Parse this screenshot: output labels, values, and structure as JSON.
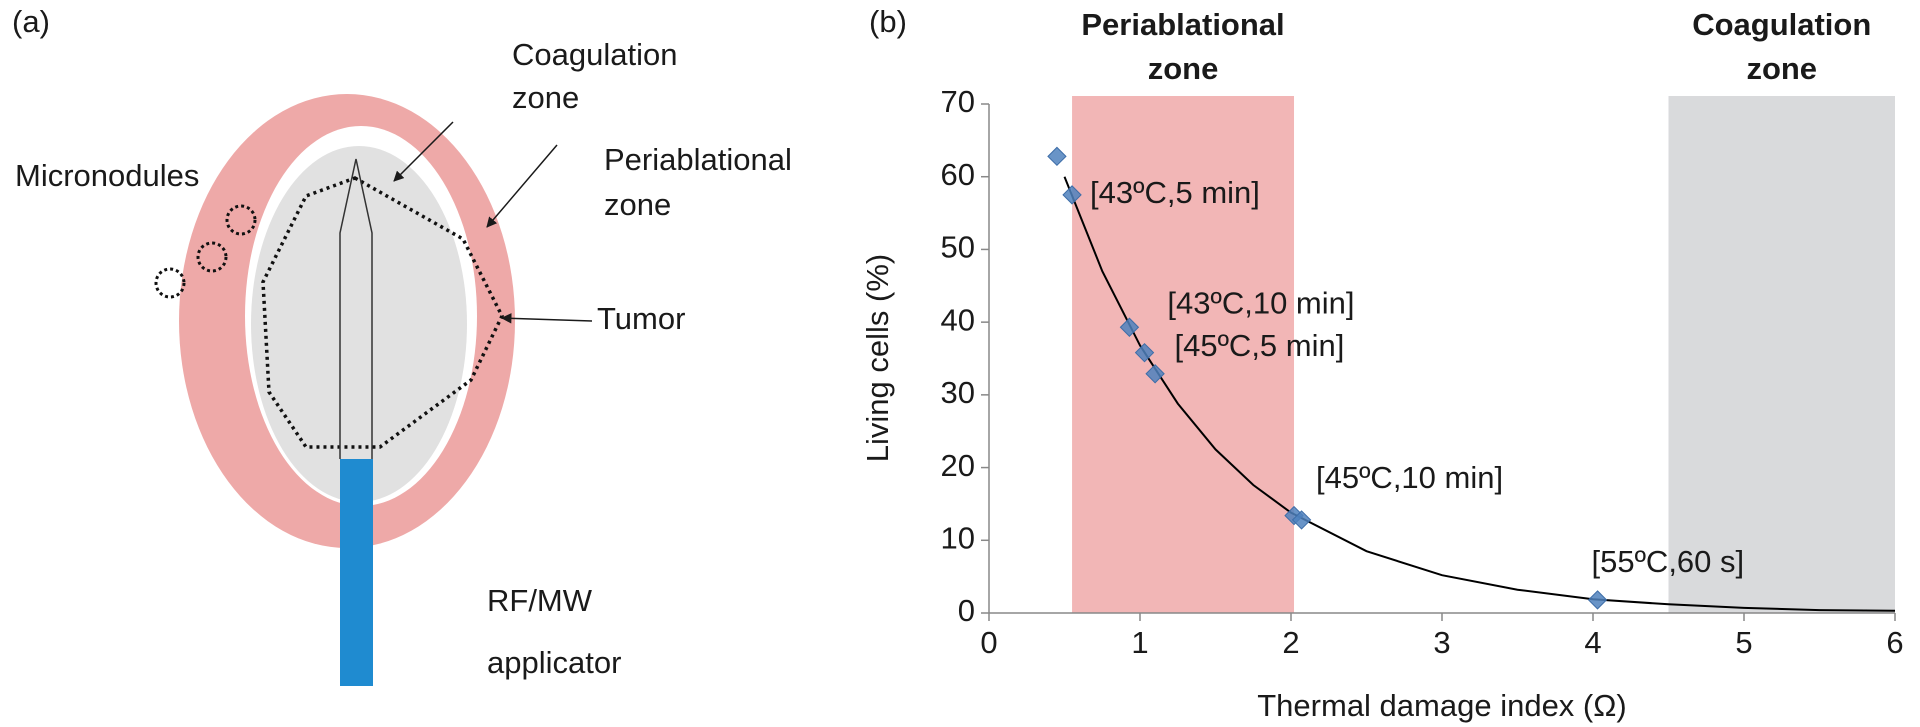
{
  "panel_a": {
    "label": "(a)",
    "coagulation_zone": [
      "Coagulation",
      "zone"
    ],
    "micronodules": "Micronodules",
    "periablational_zone": [
      "Periablational",
      "zone"
    ],
    "tumor": "Tumor",
    "applicator": [
      "RF/MW",
      "applicator"
    ]
  },
  "chart_data": {
    "type": "scatter",
    "panel_label": "(b)",
    "x_label": "Thermal damage index (Ω)",
    "y_label": "Living cells (%)",
    "xlim": [
      0,
      6
    ],
    "ylim": [
      0,
      70
    ],
    "xticks": [
      0,
      1,
      2,
      3,
      4,
      5,
      6
    ],
    "yticks": [
      0,
      10,
      20,
      30,
      40,
      50,
      60,
      70
    ],
    "zones": [
      {
        "label": [
          "Periablational",
          "zone"
        ],
        "x": [
          0.55,
          2.02
        ],
        "color": "#f2b6b6"
      },
      {
        "label": [
          "Coagulation",
          "zone"
        ],
        "x": [
          4.5,
          6
        ],
        "color": "#d9dadc"
      }
    ],
    "series": [
      {
        "color": "#4f81bd",
        "x": [
          0.45,
          0.55,
          0.93,
          1.03,
          1.1,
          2.02,
          2.07,
          4.03
        ],
        "values": [
          62.8,
          57.5,
          39.3,
          35.8,
          32.9,
          13.4,
          12.8,
          1.8
        ],
        "point_labels": [
          null,
          "[43ºC,5 min]",
          "[43ºC,10 min]",
          "[45ºC,5 min]",
          null,
          "[45ºC,10 min]",
          null,
          "[55ºC,60 s]"
        ]
      }
    ],
    "fit": {
      "color": "#000000",
      "x": [
        0.5,
        0.75,
        1,
        1.25,
        1.5,
        1.75,
        2,
        2.5,
        3,
        3.5,
        4,
        4.5,
        5,
        5.5,
        6
      ],
      "values": [
        60.0,
        47.0,
        36.8,
        28.8,
        22.5,
        17.6,
        13.8,
        8.5,
        5.2,
        3.2,
        1.9,
        1.2,
        0.7,
        0.4,
        0.3
      ]
    }
  }
}
